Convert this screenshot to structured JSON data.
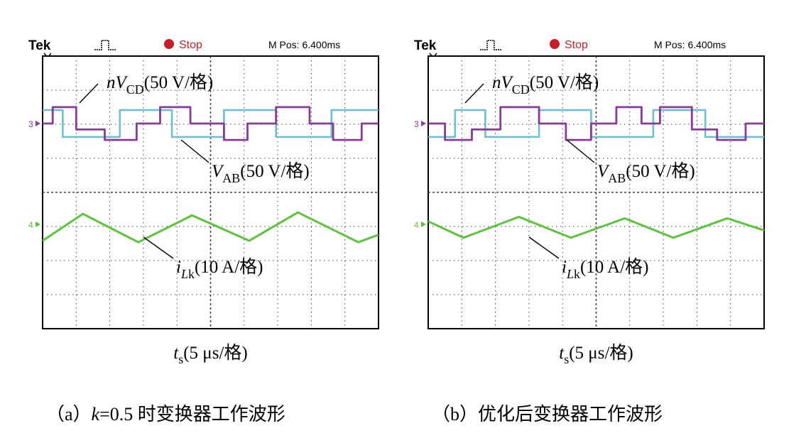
{
  "panels": [
    {
      "id": "a",
      "header": {
        "brand": "Tek",
        "run_state": "Stop",
        "mpos": "M Pos: 6.400ms"
      },
      "ch3_marker": "3",
      "ch4_marker": "4",
      "label_ncd": {
        "pre": "n",
        "var": "V",
        "sub": "CD",
        "unit": "(50 V/格)"
      },
      "label_vab": {
        "var": "V",
        "sub": "AB",
        "unit": "(50 V/格)"
      },
      "label_ilk": {
        "var": "i",
        "sub_i": "L",
        "sub_r": "k",
        "unit": "(10 A/格)"
      },
      "xlabel": {
        "var": "t",
        "sub": "s",
        "unit": "(5 μs/格)"
      },
      "caption": {
        "open": "（a）",
        "k": "k",
        "rest": "=0.5 时变换器工作波形"
      }
    },
    {
      "id": "b",
      "header": {
        "brand": "Tek",
        "run_state": "Stop",
        "mpos": "M Pos: 6.400ms"
      },
      "ch3_marker": "3",
      "ch4_marker": "4",
      "label_ncd": {
        "pre": "n",
        "var": "V",
        "sub": "CD",
        "unit": "(50 V/格)"
      },
      "label_vab": {
        "var": "V",
        "sub": "AB",
        "unit": "(50 V/格)"
      },
      "label_ilk": {
        "var": "i",
        "sub_i": "L",
        "sub_r": "k",
        "unit": "(10 A/格)"
      },
      "xlabel": {
        "var": "t",
        "sub": "s",
        "unit": "(5 μs/格)"
      },
      "caption": {
        "open": "（b）",
        "k": "",
        "rest": "优化后变换器工作波形"
      }
    }
  ],
  "chart_data": [
    {
      "type": "line",
      "grid": true,
      "grid_divisions": {
        "x": 10,
        "y": 8
      },
      "x_unit": "5 μs/div",
      "series": [
        {
          "name": "nV_CD",
          "color": "#8a3a9a",
          "x": [
            0,
            0.3,
            0.3,
            1.0,
            1.0,
            1.85,
            1.85,
            2.8,
            2.8,
            3.5,
            3.5,
            4.4,
            4.4,
            5.4,
            5.4,
            6.1,
            6.1,
            6.95,
            6.95,
            7.95,
            7.95,
            8.65,
            8.65,
            9.5,
            9.5,
            10
          ],
          "y": [
            0.0,
            0.0,
            0.55,
            0.55,
            -0.2,
            -0.2,
            -0.55,
            -0.55,
            0.0,
            0.0,
            0.55,
            0.55,
            0.0,
            0.0,
            -0.55,
            -0.55,
            0.0,
            0.0,
            0.55,
            0.55,
            0.0,
            0.0,
            -0.55,
            -0.55,
            0.0,
            0.0
          ]
        },
        {
          "name": "V_AB",
          "color": "#6fbfcc",
          "x": [
            0,
            0.6,
            0.6,
            2.3,
            2.3,
            3.85,
            3.85,
            5.4,
            5.4,
            6.95,
            6.95,
            8.6,
            8.6,
            10
          ],
          "y": [
            0.45,
            0.45,
            -0.45,
            -0.45,
            0.45,
            0.45,
            -0.45,
            -0.45,
            0.45,
            0.45,
            -0.45,
            -0.45,
            0.45,
            0.45
          ]
        },
        {
          "name": "i_Lk",
          "color": "#5cc43a",
          "x": [
            0,
            1.2,
            2.85,
            4.45,
            6.15,
            7.6,
            9.4,
            10
          ],
          "y": [
            -0.55,
            0.35,
            -0.6,
            0.3,
            -0.55,
            0.4,
            -0.6,
            -0.35
          ]
        }
      ]
    },
    {
      "type": "line",
      "grid": true,
      "grid_divisions": {
        "x": 10,
        "y": 8
      },
      "x_unit": "5 μs/div",
      "series": [
        {
          "name": "nV_CD",
          "color": "#8a3a9a",
          "x": [
            0,
            0.5,
            0.5,
            1.3,
            1.3,
            2.15,
            2.15,
            3.3,
            3.3,
            4.1,
            4.1,
            4.85,
            4.85,
            5.6,
            5.6,
            6.35,
            6.35,
            6.9,
            6.9,
            7.85,
            7.85,
            8.6,
            8.6,
            9.45,
            9.45,
            10
          ],
          "y": [
            0.0,
            0.0,
            -0.55,
            -0.55,
            -0.2,
            -0.2,
            0.55,
            0.55,
            0.0,
            0.0,
            -0.55,
            -0.55,
            0.0,
            0.0,
            0.55,
            0.55,
            0.0,
            0.0,
            0.55,
            0.55,
            -0.2,
            -0.2,
            -0.55,
            -0.55,
            0.0,
            0.0
          ]
        },
        {
          "name": "V_AB",
          "color": "#6fbfcc",
          "x": [
            0,
            0.8,
            0.8,
            1.7,
            1.7,
            3.3,
            3.3,
            4.85,
            4.85,
            6.7,
            6.7,
            8.25,
            8.25,
            10
          ],
          "y": [
            -0.45,
            -0.45,
            0.45,
            0.45,
            -0.45,
            -0.45,
            0.45,
            0.45,
            -0.45,
            -0.45,
            0.45,
            0.45,
            -0.45,
            -0.45
          ]
        },
        {
          "name": "i_Lk",
          "color": "#5cc43a",
          "x": [
            0,
            1.05,
            2.7,
            4.25,
            5.85,
            7.3,
            8.9,
            10
          ],
          "y": [
            0.1,
            -0.45,
            0.25,
            -0.45,
            0.2,
            -0.45,
            0.2,
            -0.2
          ]
        }
      ]
    }
  ]
}
